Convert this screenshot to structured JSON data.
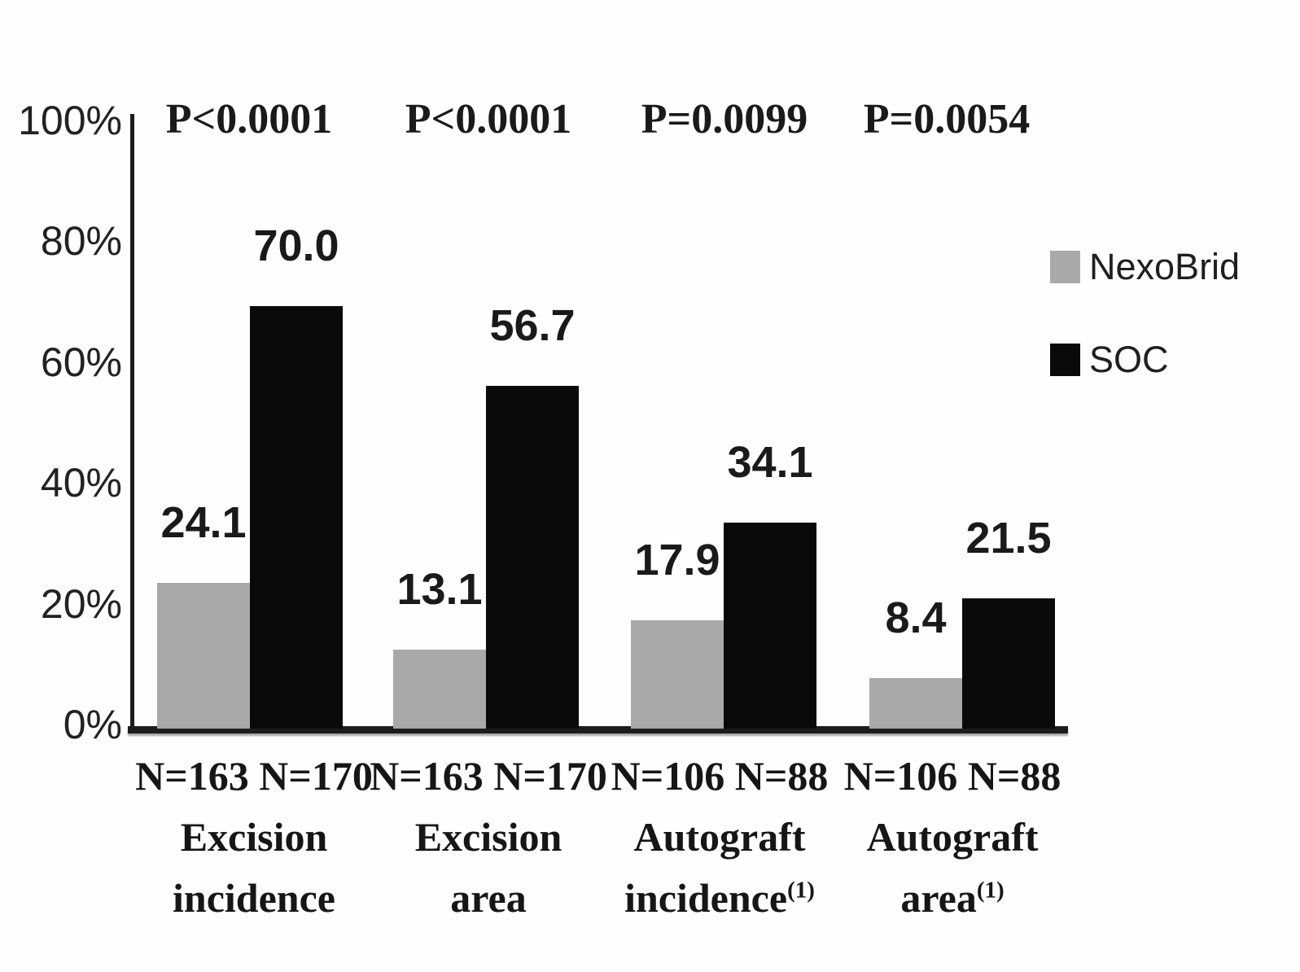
{
  "chart_data": {
    "type": "bar",
    "title": "",
    "grid": false,
    "ylim": [
      0,
      100
    ],
    "y_axis": {
      "unit": "%",
      "ticks": [
        {
          "label": "0%",
          "value": 0
        },
        {
          "label": "20%",
          "value": 20
        },
        {
          "label": "40%",
          "value": 40
        },
        {
          "label": "60%",
          "value": 60
        },
        {
          "label": "80%",
          "value": 80
        },
        {
          "label": "100%",
          "value": 100
        }
      ]
    },
    "categories": [
      {
        "p_value": "P<0.0001",
        "n_labels": "N=163 N=170",
        "name_lines": [
          "Excision",
          "incidence"
        ],
        "footnote": ""
      },
      {
        "p_value": "P<0.0001",
        "n_labels": "N=163 N=170",
        "name_lines": [
          "Excision",
          "area"
        ],
        "footnote": ""
      },
      {
        "p_value": "P=0.0099",
        "n_labels": "N=106 N=88",
        "name_lines": [
          "Autograft",
          "incidence"
        ],
        "footnote": "(1)"
      },
      {
        "p_value": "P=0.0054",
        "n_labels": "N=106 N=88",
        "name_lines": [
          "Autograft",
          "area"
        ],
        "footnote": "(1)"
      }
    ],
    "series": [
      {
        "name": "NexoBrid",
        "color": "#a9a9a9",
        "values": [
          24.1,
          13.1,
          17.9,
          8.4
        ]
      },
      {
        "name": "SOC",
        "color": "#0a0a0a",
        "values": [
          70.0,
          56.7,
          34.1,
          21.5
        ]
      }
    ],
    "legend": {
      "position": "right",
      "items": [
        {
          "label": "NexoBrid",
          "color": "#a9a9a9"
        },
        {
          "label": "SOC",
          "color": "#0a0a0a"
        }
      ]
    }
  }
}
